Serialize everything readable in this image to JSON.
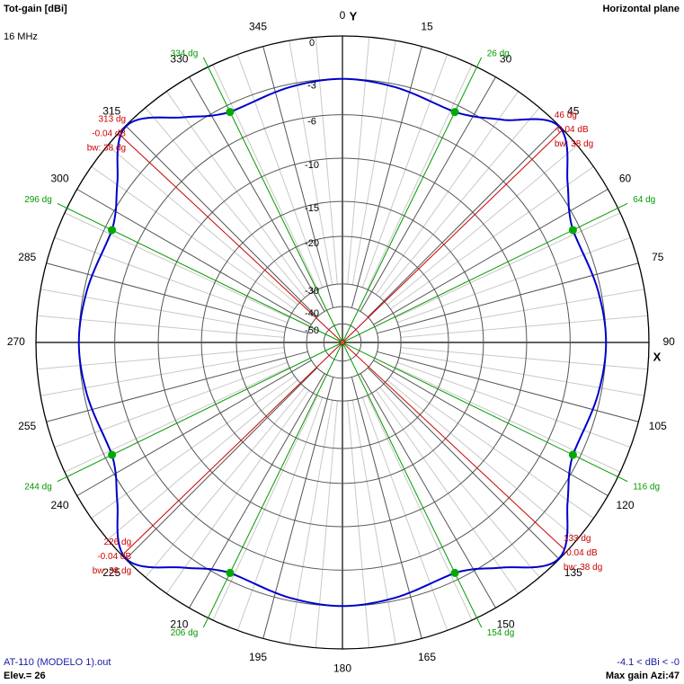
{
  "header": {
    "title": "Tot-gain [dBi]",
    "plane": "Horizontal plane",
    "frequency": "16 MHz"
  },
  "footer": {
    "file": "AT-110 (MODELO 1).out",
    "elevation": "Elev.= 26",
    "range": "-4.1 < dBi < -0",
    "max_gain": "Max gain Azi:47"
  },
  "chart_data": {
    "type": "polar",
    "axis_labels": {
      "y": "Y",
      "x": "X"
    },
    "azimuth_ticks": [
      0,
      15,
      30,
      45,
      60,
      75,
      90,
      105,
      120,
      135,
      150,
      165,
      180,
      195,
      210,
      225,
      240,
      255,
      270,
      285,
      300,
      315,
      330,
      345
    ],
    "radial_levels_db": [
      0,
      -3,
      -6,
      -10,
      -15,
      -20,
      -30,
      -40,
      -50
    ],
    "radial_labels": [
      "0",
      "-3",
      "-6",
      "-10",
      "-15",
      "-20",
      "-30",
      "-40",
      "-50"
    ],
    "gain_range_dbi": [
      -4.1,
      0
    ],
    "max_gain_azimuth_deg": 47,
    "elevation_deg": 26,
    "series": [
      {
        "color": "#0000cc",
        "points": [
          {
            "az": 0,
            "gain_db": -3.0
          },
          {
            "az": 10,
            "gain_db": -3.2
          },
          {
            "az": 26,
            "gain_db": -3.6
          },
          {
            "az": 36,
            "gain_db": -2.2
          },
          {
            "az": 45,
            "gain_db": -0.04
          },
          {
            "az": 55,
            "gain_db": -2.2
          },
          {
            "az": 64,
            "gain_db": -3.6
          },
          {
            "az": 80,
            "gain_db": -3.2
          },
          {
            "az": 90,
            "gain_db": -3.0
          },
          {
            "az": 100,
            "gain_db": -3.2
          },
          {
            "az": 116,
            "gain_db": -3.6
          },
          {
            "az": 125,
            "gain_db": -2.2
          },
          {
            "az": 135,
            "gain_db": -0.04
          },
          {
            "az": 145,
            "gain_db": -2.2
          },
          {
            "az": 154,
            "gain_db": -3.6
          },
          {
            "az": 170,
            "gain_db": -3.2
          },
          {
            "az": 180,
            "gain_db": -3.0
          },
          {
            "az": 190,
            "gain_db": -3.2
          },
          {
            "az": 206,
            "gain_db": -3.6
          },
          {
            "az": 215,
            "gain_db": -2.2
          },
          {
            "az": 225,
            "gain_db": -0.04
          },
          {
            "az": 235,
            "gain_db": -2.2
          },
          {
            "az": 244,
            "gain_db": -3.6
          },
          {
            "az": 260,
            "gain_db": -3.2
          },
          {
            "az": 270,
            "gain_db": -3.0
          },
          {
            "az": 280,
            "gain_db": -3.2
          },
          {
            "az": 296,
            "gain_db": -3.6
          },
          {
            "az": 305,
            "gain_db": -2.2
          },
          {
            "az": 315,
            "gain_db": -0.04
          },
          {
            "az": 325,
            "gain_db": -2.2
          },
          {
            "az": 334,
            "gain_db": -3.6
          },
          {
            "az": 350,
            "gain_db": -3.2
          }
        ]
      }
    ],
    "beam_markers": [
      {
        "az": 46,
        "az_label": "46 dg",
        "gain_label": "-0.04 dB",
        "bw_label": "bw: 38 dg"
      },
      {
        "az": 133,
        "az_label": "133 dg",
        "gain_label": "-0.04 dB",
        "bw_label": "bw: 38 dg"
      },
      {
        "az": 226,
        "az_label": "226 dg",
        "gain_label": "-0.04 dB",
        "bw_label": "bw: 38 dg"
      },
      {
        "az": 313,
        "az_label": "313 dg",
        "gain_label": "-0.04 dB",
        "bw_label": "bw: 38 dg"
      }
    ],
    "beamwidth_markers": [
      {
        "az": 26,
        "label": "26 dg"
      },
      {
        "az": 64,
        "label": "64 dg"
      },
      {
        "az": 116,
        "label": "116 dg"
      },
      {
        "az": 154,
        "label": "154 dg"
      },
      {
        "az": 206,
        "label": "206 dg"
      },
      {
        "az": 244,
        "label": "244 dg"
      },
      {
        "az": 296,
        "label": "296 dg"
      },
      {
        "az": 334,
        "label": "334 dg"
      }
    ],
    "colors": {
      "pattern": "#0000cc",
      "max_lines": "#cc0000",
      "bw_lines": "#009900",
      "grid": "#000000"
    }
  }
}
